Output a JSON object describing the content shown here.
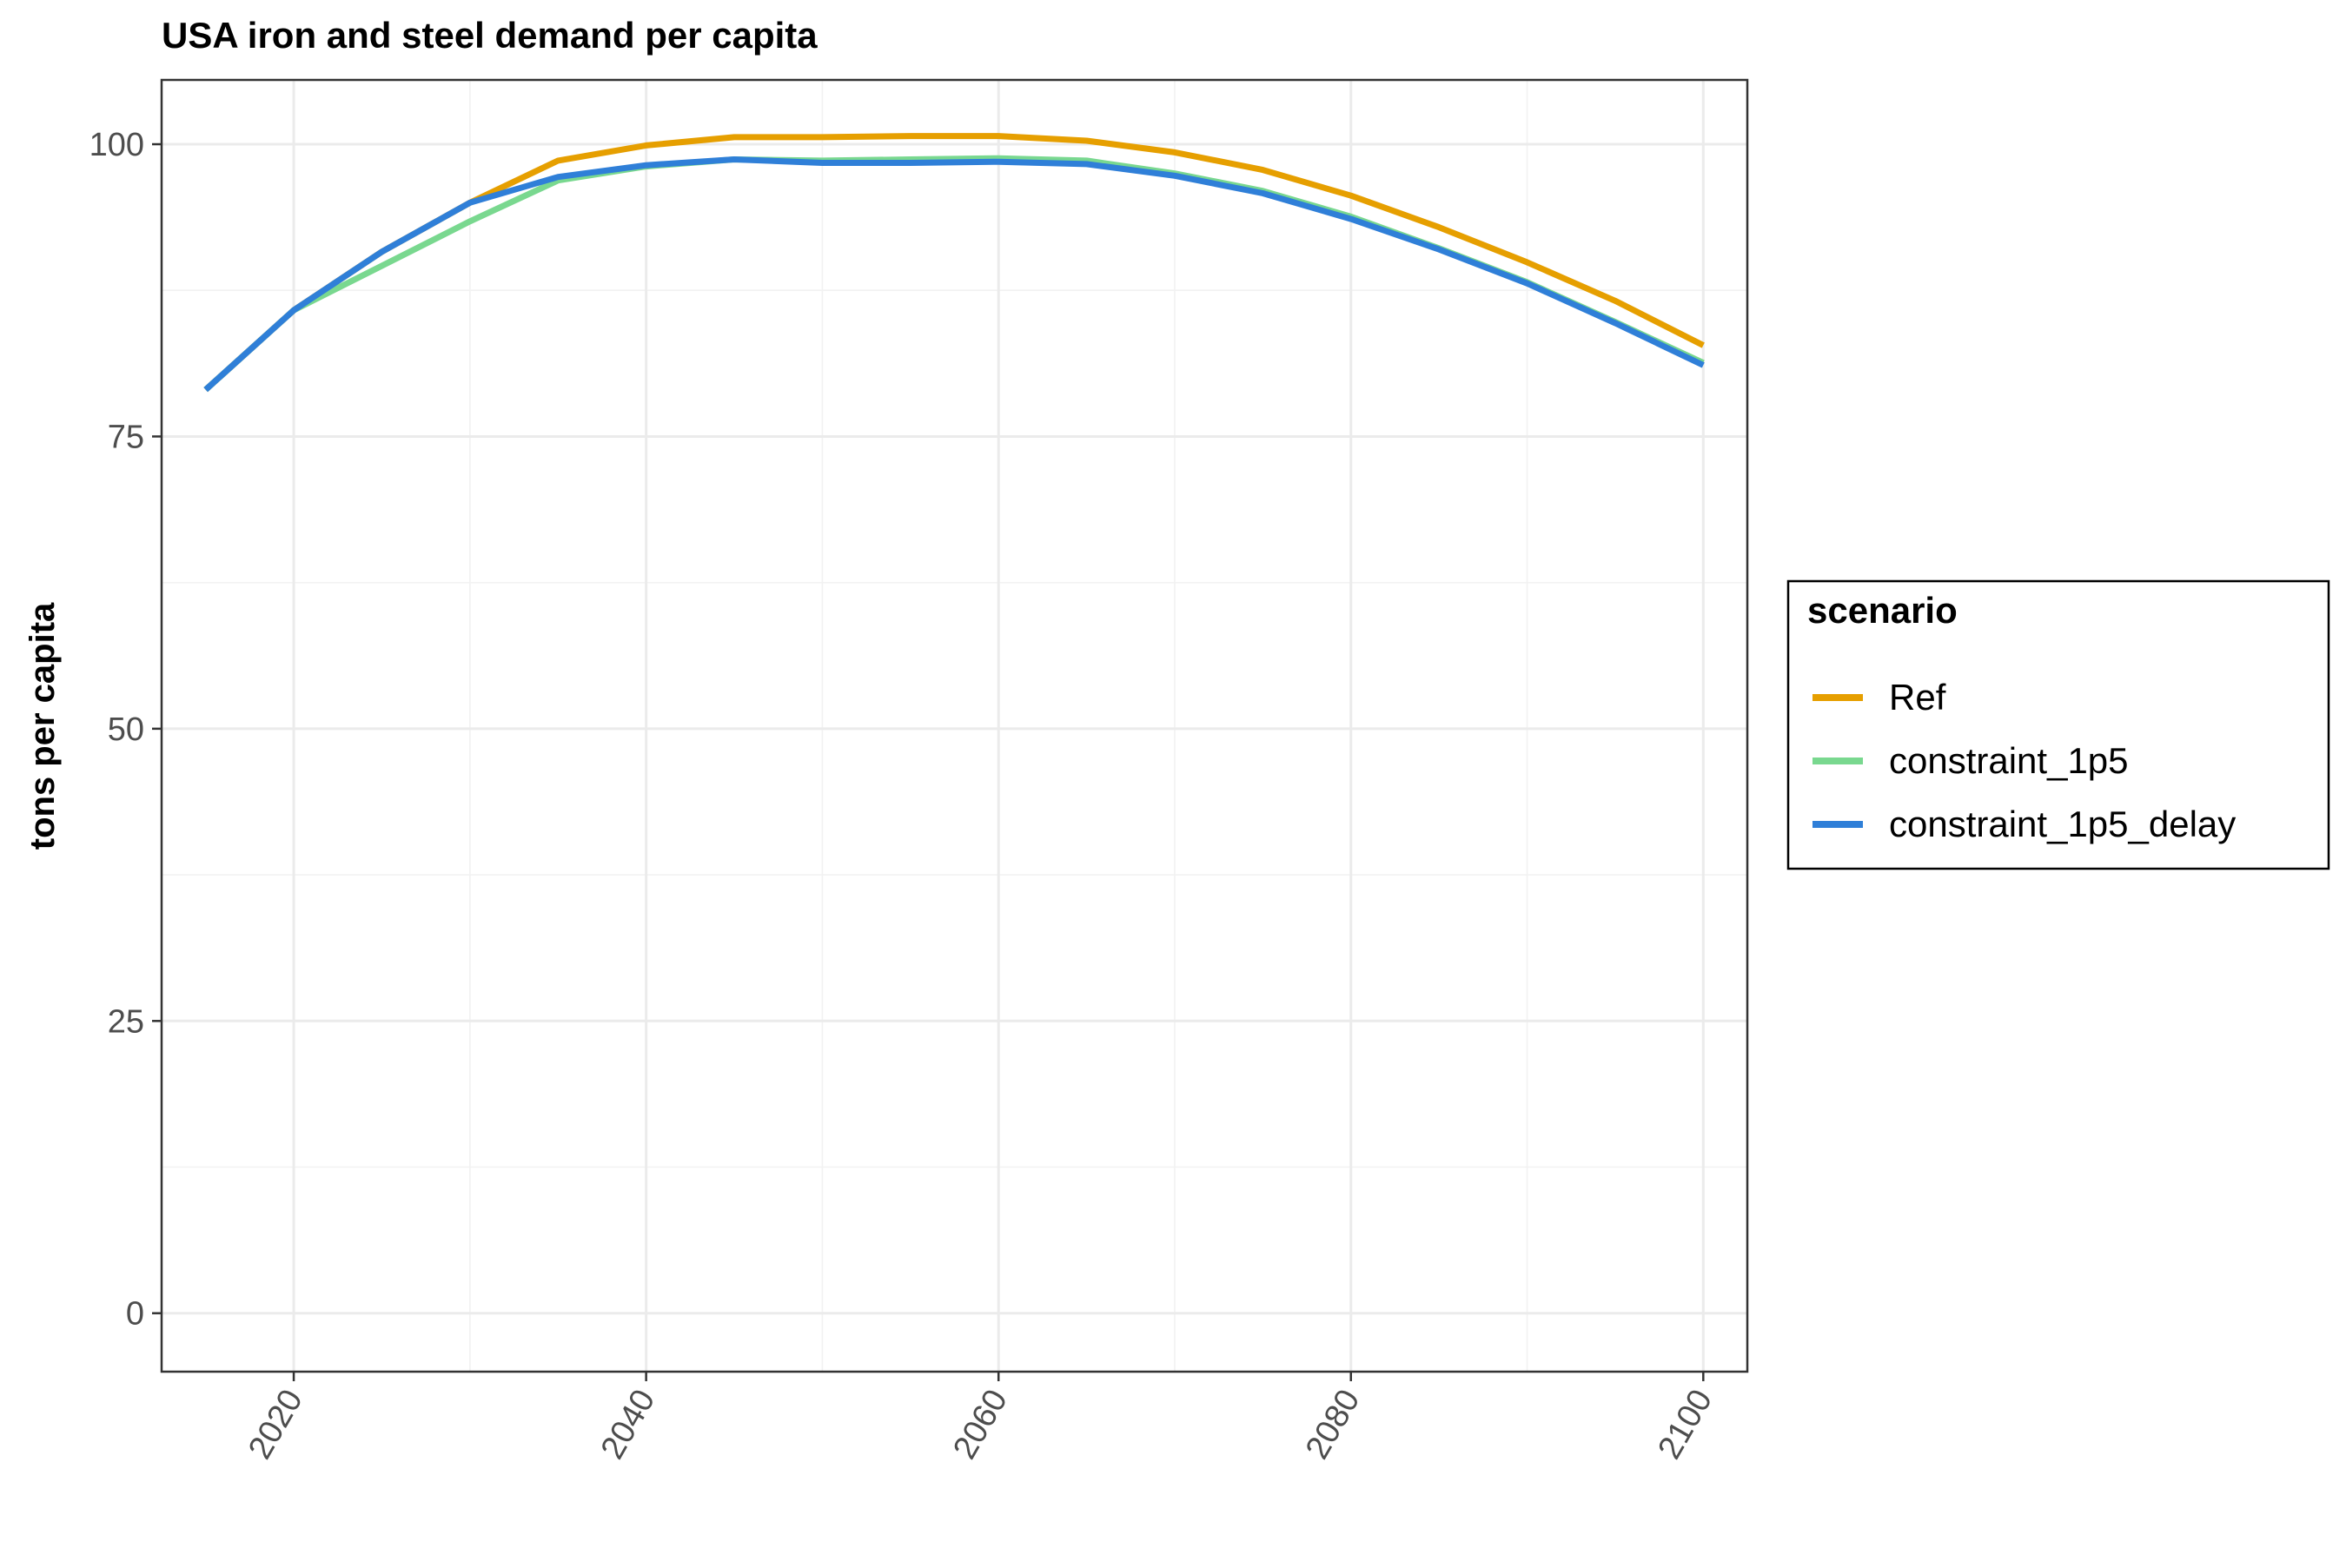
{
  "chart_data": {
    "type": "line",
    "title": "USA iron and steel demand per capita",
    "xlabel": "",
    "ylabel": "tons per capita",
    "xlim": [
      2012.5,
      2102.5
    ],
    "ylim": [
      -5,
      105.5
    ],
    "xticks": [
      2020,
      2040,
      2060,
      2080,
      2100
    ],
    "xtick_labels": [
      "2020",
      "2040",
      "2060",
      "2080",
      "2100"
    ],
    "yticks": [
      0,
      25,
      50,
      75,
      100
    ],
    "ytick_labels": [
      "0",
      "25",
      "50",
      "75",
      "100"
    ],
    "x_minor": [
      2030,
      2050,
      2070,
      2090
    ],
    "y_minor": [
      12.5,
      37.5,
      62.5,
      87.5
    ],
    "grid": true,
    "legend": {
      "title": "scenario",
      "placement": "right"
    },
    "x": [
      2015,
      2020,
      2025,
      2030,
      2035,
      2040,
      2045,
      2050,
      2055,
      2060,
      2065,
      2070,
      2075,
      2080,
      2085,
      2090,
      2095,
      2100
    ],
    "series": [
      {
        "name": "Ref",
        "color": "#E69F00",
        "values": [
          79.0,
          85.8,
          90.8,
          95.0,
          98.6,
          99.9,
          100.6,
          100.6,
          100.7,
          100.7,
          100.3,
          99.3,
          97.8,
          95.6,
          92.9,
          89.9,
          86.6,
          82.8
        ]
      },
      {
        "name": "constraint_1p5",
        "color": "#79D88F",
        "values": [
          79.0,
          85.8,
          89.6,
          93.4,
          96.9,
          98.1,
          98.7,
          98.6,
          98.7,
          98.8,
          98.6,
          97.5,
          96.0,
          93.8,
          91.1,
          88.2,
          84.8,
          81.3
        ]
      },
      {
        "name": "constraint_1p5_delay",
        "color": "#2F7FD8",
        "values": [
          79.0,
          85.8,
          90.8,
          95.0,
          97.2,
          98.2,
          98.7,
          98.4,
          98.4,
          98.5,
          98.3,
          97.3,
          95.8,
          93.6,
          91.0,
          88.1,
          84.7,
          81.1
        ]
      }
    ]
  }
}
